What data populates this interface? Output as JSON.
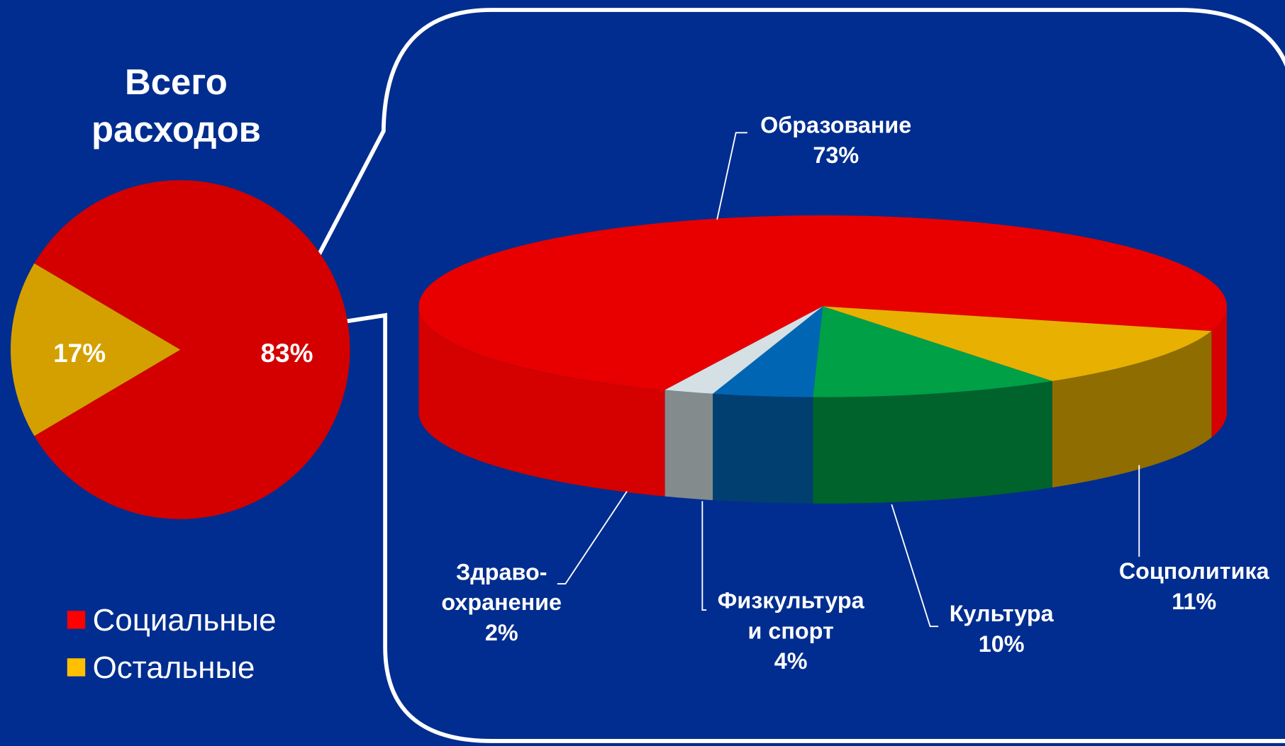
{
  "chart_data": [
    {
      "type": "pie",
      "title": "Всего\nрасходов",
      "categories": [
        "Социальные",
        "Остальные"
      ],
      "values": [
        83,
        17
      ],
      "value_labels": [
        "83%",
        "17%"
      ],
      "colors": [
        "#d40000",
        "#d4a000"
      ],
      "legend_colors": [
        "#ff0000",
        "#ffc000"
      ],
      "legend": "bottom-left"
    },
    {
      "type": "pie3d",
      "categories": [
        "Образование",
        "Соцполитика",
        "Культура",
        "Физкультура\nи спорт",
        "Здраво-\nохранение"
      ],
      "values": [
        73,
        11,
        10,
        4,
        2
      ],
      "value_labels": [
        "73%",
        "11%",
        "10%",
        "4%",
        "2%"
      ],
      "colors": [
        "#e80000",
        "#e8b000",
        "#00a046",
        "#0066b4",
        "#d4e0e4"
      ]
    }
  ]
}
